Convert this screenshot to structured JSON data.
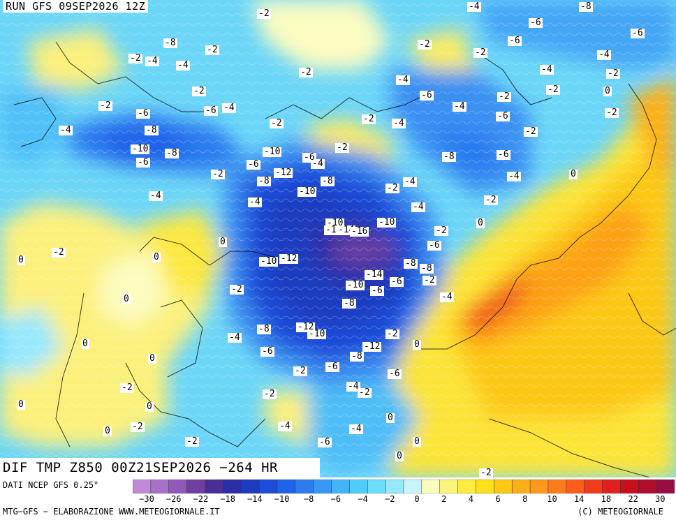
{
  "header": {
    "run_label": "RUN GFS 09SEP2026 12Z"
  },
  "map": {
    "title": "DIF TMP Z850 00Z21SEP2026 −264 HR"
  },
  "footer": {
    "source": "DATI NCEP GFS 0.25°",
    "credit": "MTG−GFS − ELABORAZIONE WWW.METEOGIORNALE.IT",
    "copyright": "(C) METEOGIORNALE"
  },
  "legend": {
    "colors": [
      "#c08ad8",
      "#a870c8",
      "#9058b8",
      "#7040a0",
      "#4a2e98",
      "#2c2ea8",
      "#1c3cc0",
      "#1c4cd8",
      "#2062e8",
      "#2c7cf0",
      "#3898f4",
      "#44b4f8",
      "#50ccfa",
      "#6cdcfc",
      "#98e8fc",
      "#c8f4fc",
      "#fcfcc0",
      "#fcf47c",
      "#fcec40",
      "#fce01c",
      "#fcc814",
      "#fcb018",
      "#fc981c",
      "#fc7c1c",
      "#fc5c1c",
      "#f03c1c",
      "#e0201c",
      "#c8101c",
      "#b00c2c",
      "#980c44"
    ],
    "tick_labels": [
      "−30",
      "−26",
      "−22",
      "−18",
      "−14",
      "−10",
      "−8",
      "−6",
      "−4",
      "−2",
      "0",
      "2",
      "4",
      "6",
      "8",
      "10",
      "14",
      "18",
      "22",
      "30"
    ]
  },
  "contour_labels": [
    "-2",
    "-4",
    "-8",
    "-6",
    "-6",
    "-8",
    "-4",
    "-2",
    "-4",
    "-2",
    "-6",
    "-4",
    "-2",
    "-2",
    "-6",
    "-4",
    "-2",
    "-4",
    "-6",
    "-2",
    "0",
    "-4",
    "-2",
    "-2",
    "-4",
    "-2",
    "-6",
    "-2",
    "-2",
    "-2",
    "-6",
    "-8",
    "-10",
    "-8",
    "-2",
    "-6",
    "-10",
    "-2",
    "-4",
    "-4",
    "-2",
    "-6",
    "-4",
    "-8",
    "-4",
    "-10",
    "-6",
    "-12",
    "-6",
    "-8",
    "-8",
    "-2",
    "-4",
    "-10",
    "-4",
    "0",
    "-4",
    "-2",
    "-4",
    "-2",
    "0",
    "-12",
    "-14",
    "-16",
    "-10",
    "-2",
    "-6",
    "-2",
    "0",
    "-10",
    "-12",
    "-8",
    "-2",
    "-14",
    "-8",
    "-10",
    "-6",
    "-6",
    "-2",
    "-4",
    "0",
    "0",
    "-8",
    "0",
    "-4",
    "-12",
    "-10",
    "-2",
    "0",
    "-6",
    "-12",
    "-8",
    "0",
    "-8",
    "-6",
    "-2",
    "-6",
    "-4",
    "0",
    "-2",
    "0",
    "-2",
    "0",
    "-2",
    "-4",
    "0",
    "-4",
    "0",
    "-2",
    "-6",
    "0",
    "-2",
    "0",
    "-2",
    "0"
  ]
}
